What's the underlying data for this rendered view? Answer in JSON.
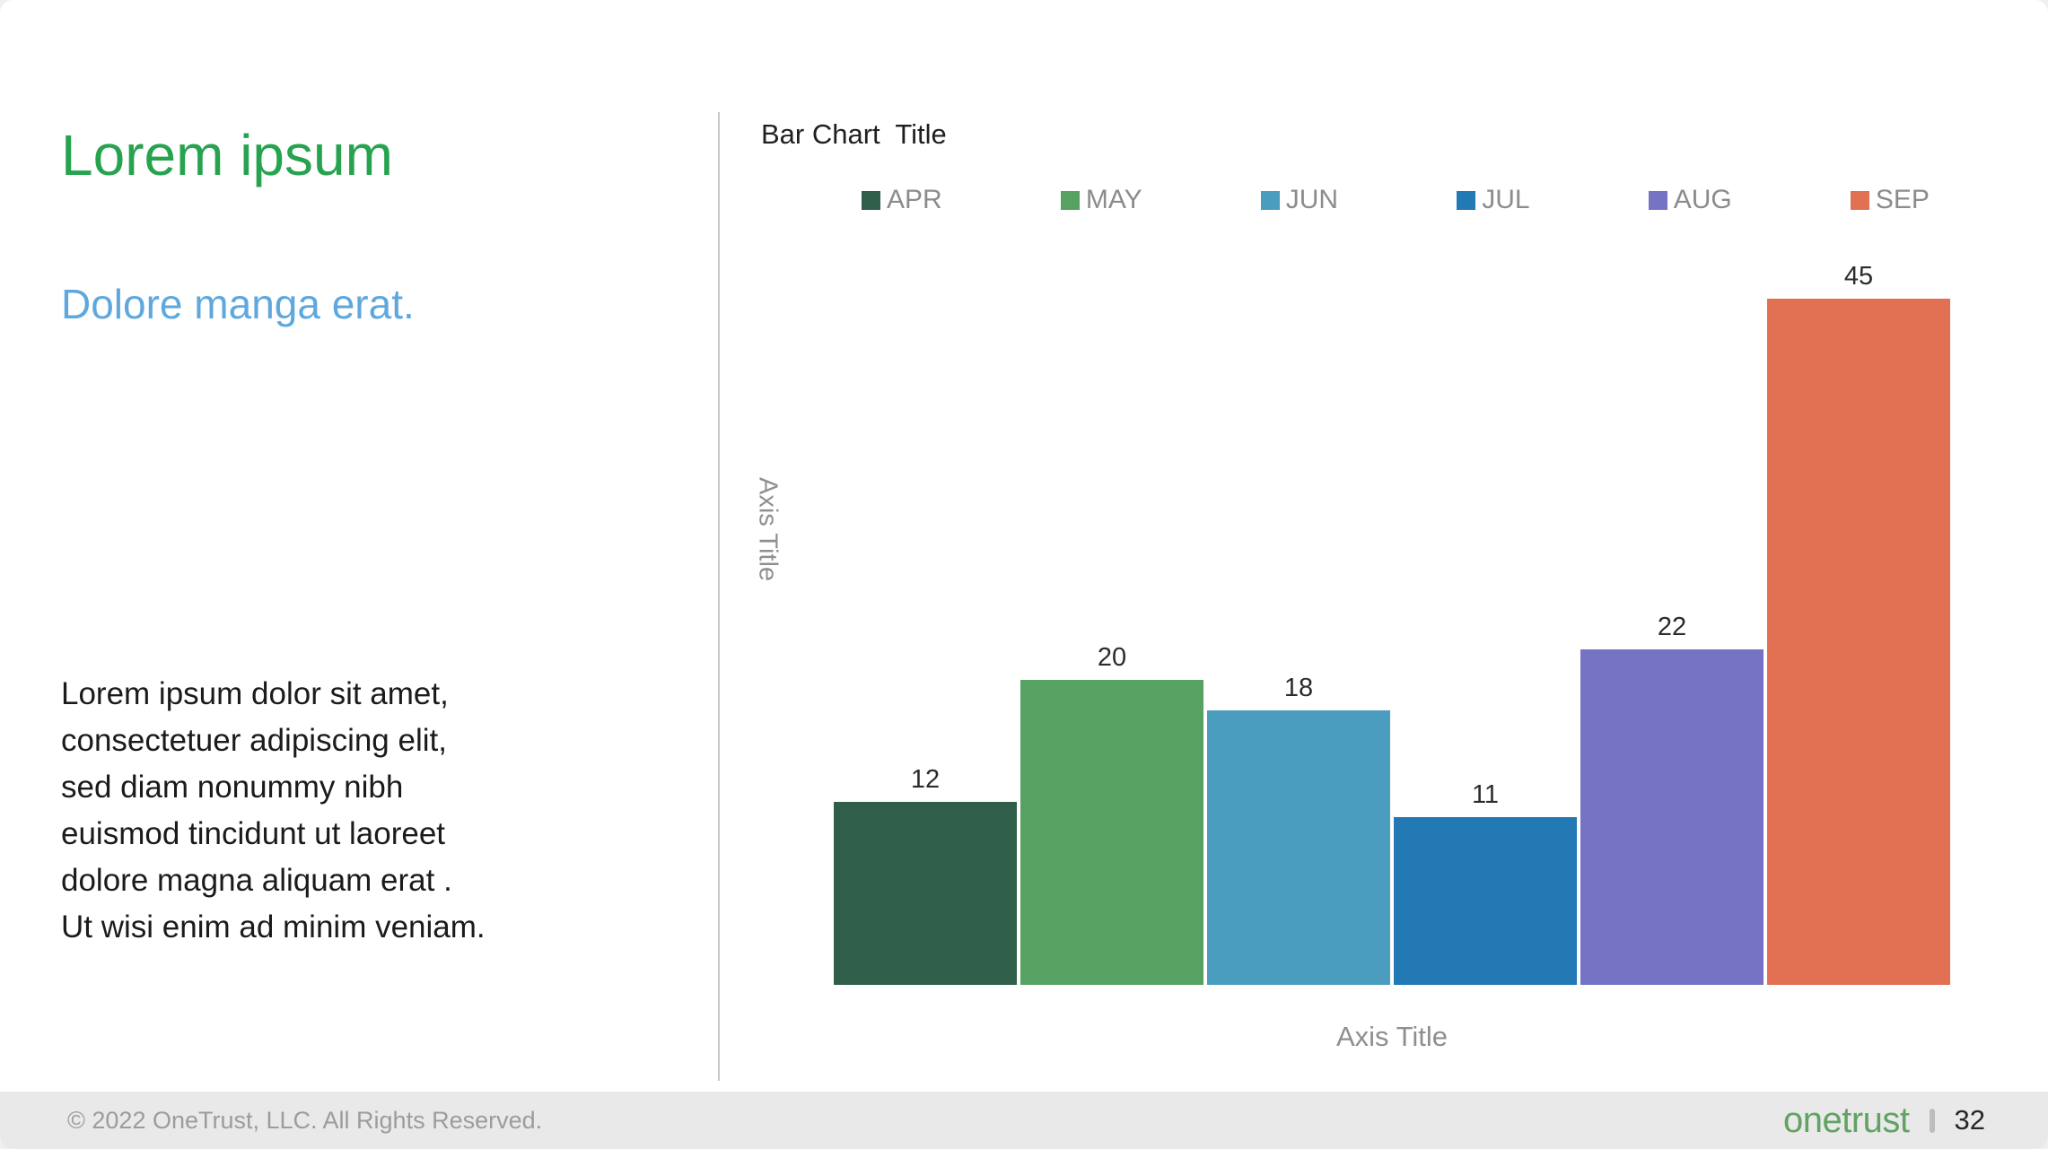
{
  "slide": {
    "title": "Lorem ipsum",
    "subtitle": "Dolore manga erat.",
    "body": "Lorem ipsum dolor sit amet,\nconsectetuer adipiscing elit,\nsed diam nonummy nibh\neuismod tincidunt ut laoreet\ndolore magna aliquam erat .\nUt wisi enim ad minim veniam."
  },
  "chart_data": {
    "type": "bar",
    "title": "Bar Chart  Title",
    "categories": [
      "APR",
      "MAY",
      "JUN",
      "JUL",
      "AUG",
      "SEP"
    ],
    "values": [
      12,
      20,
      18,
      11,
      22,
      45
    ],
    "colors": [
      "#2F5F49",
      "#57A162",
      "#4B9DBF",
      "#2279B4",
      "#7673C5",
      "#E17152"
    ],
    "xlabel": "Axis Title",
    "ylabel": "Axis Title",
    "ylim": [
      0,
      48
    ],
    "grid": false,
    "legend_position": "top",
    "data_labels": true
  },
  "footer": {
    "copyright": "© 2022 OneTrust, LLC. All Rights Reserved.",
    "logo_text": "onetrust",
    "page_number": "32"
  },
  "colors": {
    "title_green": "#27A350",
    "subtitle_blue": "#5FA8DE",
    "divider_gray": "#C9C9C9",
    "legend_text_gray": "#8C8C8C",
    "axis_text_gray": "#8F8F8F",
    "footer_bg": "#E9E9E9",
    "footer_text": "#9C9C9C",
    "logo_green": "#62A263"
  }
}
